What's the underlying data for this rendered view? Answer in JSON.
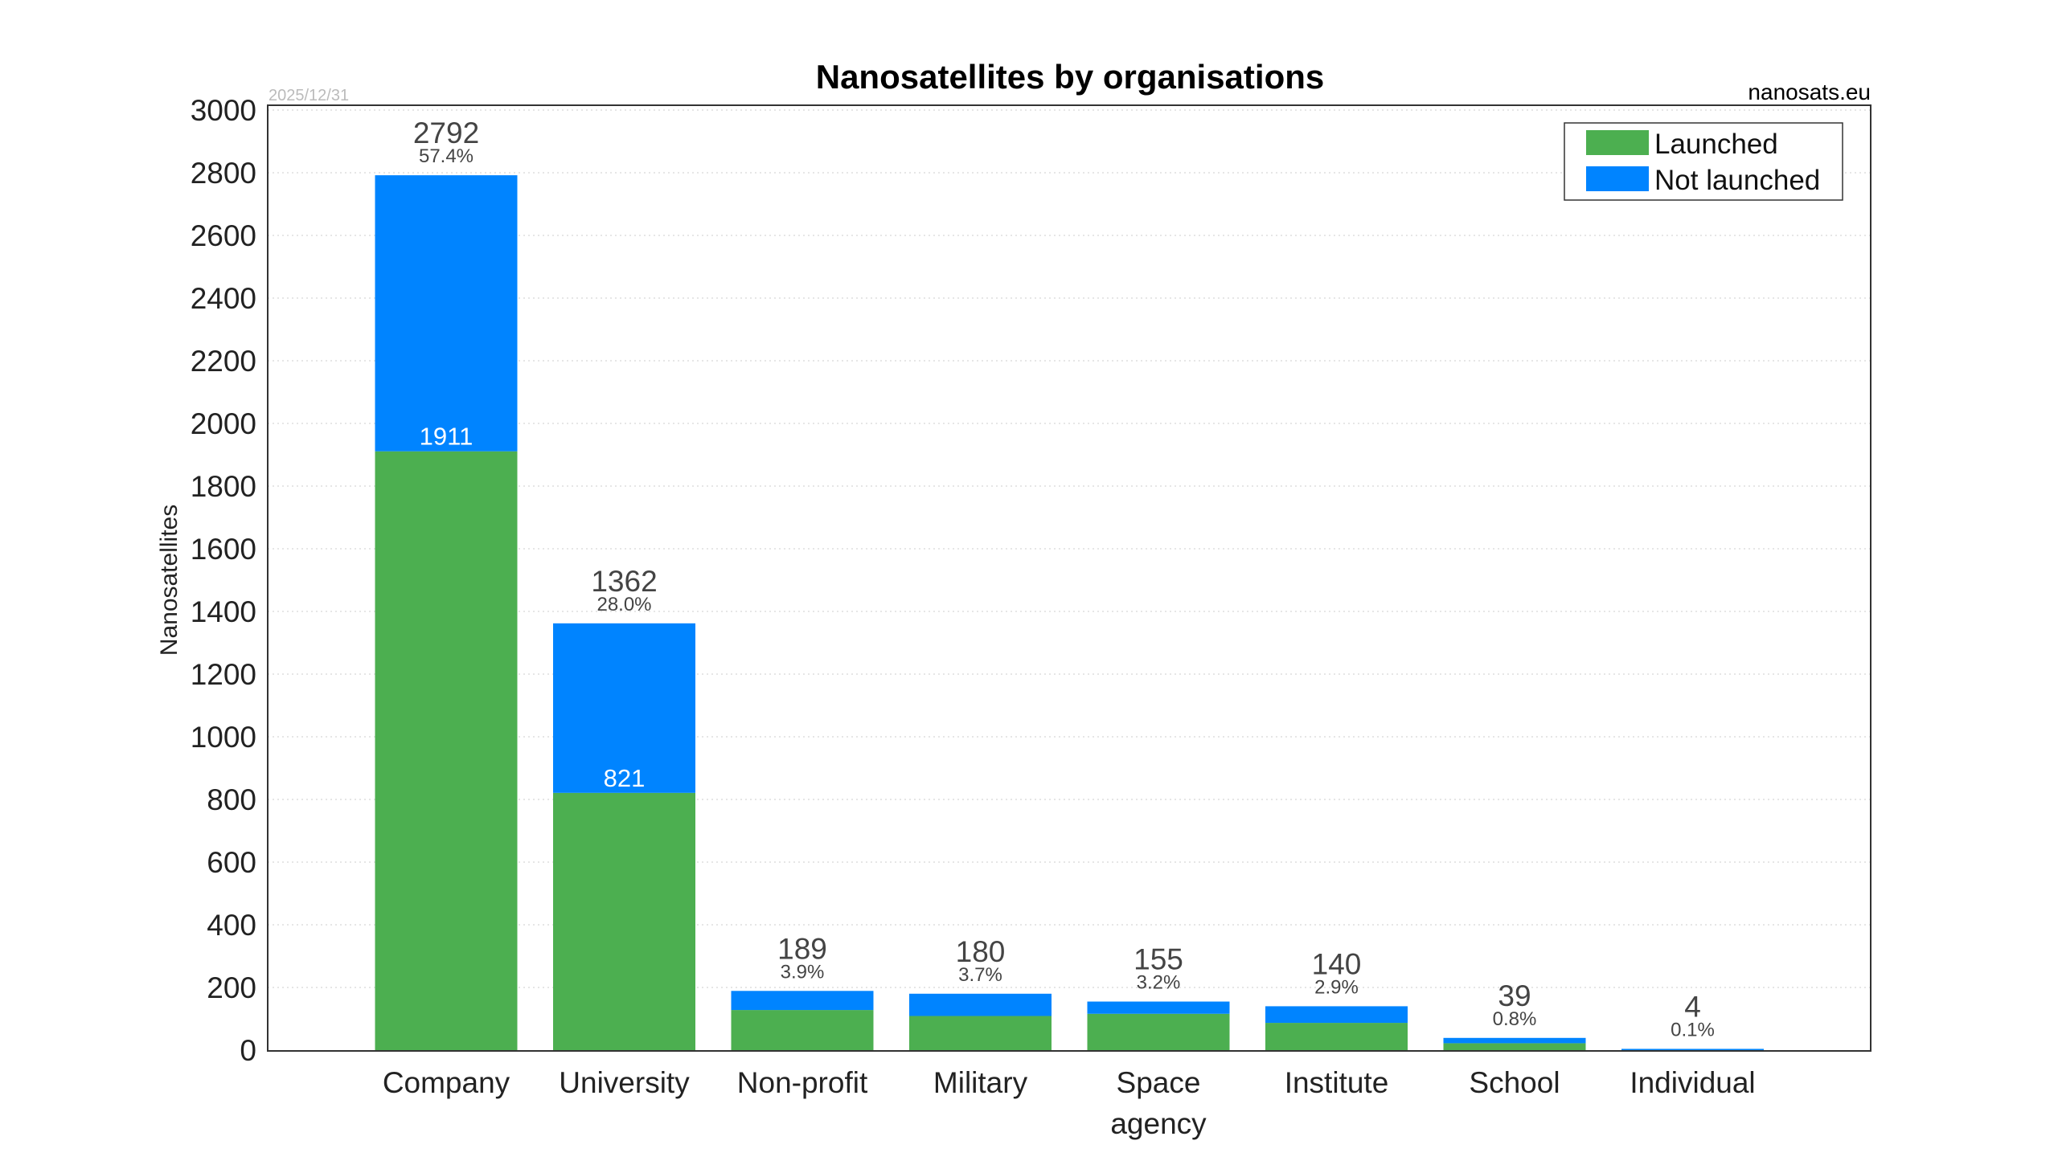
{
  "chart_data": {
    "type": "bar",
    "stacked": true,
    "title": "Nanosatellites by organisations",
    "source": "nanosats.eu",
    "date": "2025/12/31",
    "xlabel": "",
    "ylabel": "Nanosatellites",
    "ylim": [
      0,
      3000
    ],
    "yticks": [
      0,
      200,
      400,
      600,
      800,
      1000,
      1200,
      1400,
      1600,
      1800,
      2000,
      2200,
      2400,
      2600,
      2800,
      3000
    ],
    "grid": true,
    "legend_position": "top-right",
    "categories": [
      [
        "Company"
      ],
      [
        "University"
      ],
      [
        "Non-profit"
      ],
      [
        "Military"
      ],
      [
        "Space",
        "agency"
      ],
      [
        "Institute"
      ],
      [
        "School"
      ],
      [
        "Individual"
      ]
    ],
    "series": [
      {
        "name": "Launched",
        "color": "#4caf50",
        "values": [
          1911,
          821,
          128,
          109,
          116,
          87,
          22,
          0
        ]
      },
      {
        "name": "Not launched",
        "color": "#0084ff",
        "values": [
          881,
          541,
          61,
          71,
          39,
          53,
          17,
          4
        ]
      }
    ],
    "totals": [
      2792,
      1362,
      189,
      180,
      155,
      140,
      39,
      4
    ],
    "percents": [
      "57.4%",
      "28.0%",
      "3.9%",
      "3.7%",
      "3.2%",
      "2.9%",
      "0.8%",
      "0.1%"
    ],
    "inner_labels": [
      "1911",
      "821",
      null,
      null,
      null,
      null,
      null,
      null
    ]
  }
}
